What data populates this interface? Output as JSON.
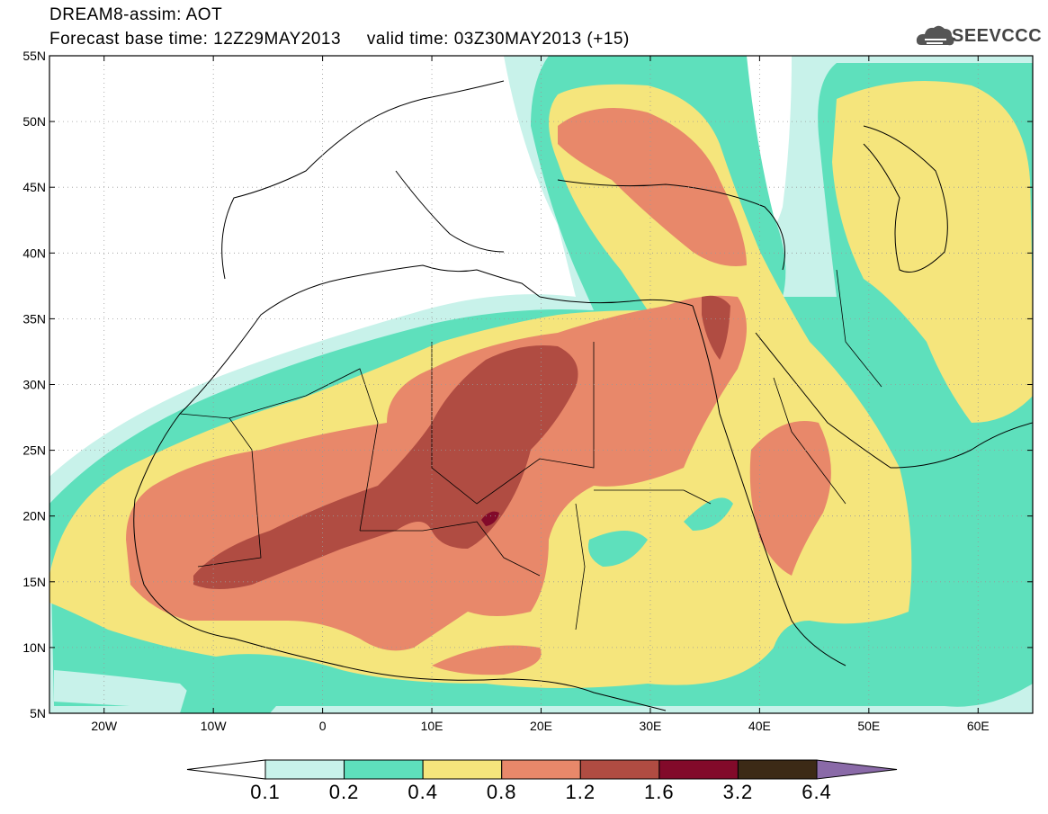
{
  "header": {
    "line1": "DREAM8-assim: AOT",
    "line2": "Forecast base time: 12Z29MAY2013     valid time: 03Z30MAY2013 (+15)"
  },
  "logo": {
    "text": "SEEVCCC",
    "icon": "cloud-icon"
  },
  "axes": {
    "lat_labels": [
      "55N",
      "50N",
      "45N",
      "40N",
      "35N",
      "30N",
      "25N",
      "20N",
      "15N",
      "10N",
      "5N"
    ],
    "lat_values": [
      55,
      50,
      45,
      40,
      35,
      30,
      25,
      20,
      15,
      10,
      5
    ],
    "lon_labels": [
      "20W",
      "10W",
      "0",
      "10E",
      "20E",
      "30E",
      "40E",
      "50E",
      "60E"
    ],
    "lon_values": [
      -20,
      -10,
      0,
      10,
      20,
      30,
      40,
      50,
      60
    ],
    "lon_range": [
      -25,
      65
    ],
    "lat_range": [
      5,
      55
    ],
    "grid": "dotted"
  },
  "colorbar": {
    "colors": [
      "#c8f2ea",
      "#5ee0bc",
      "#f5e57c",
      "#e8886a",
      "#b04c42",
      "#820a2a",
      "#3c2a16"
    ],
    "under_color": "#ffffff",
    "over_color": "#8a6aa8",
    "labels": [
      "0.1",
      "0.2",
      "0.4",
      "0.8",
      "1.2",
      "1.6",
      "3.2",
      "6.4"
    ]
  }
}
